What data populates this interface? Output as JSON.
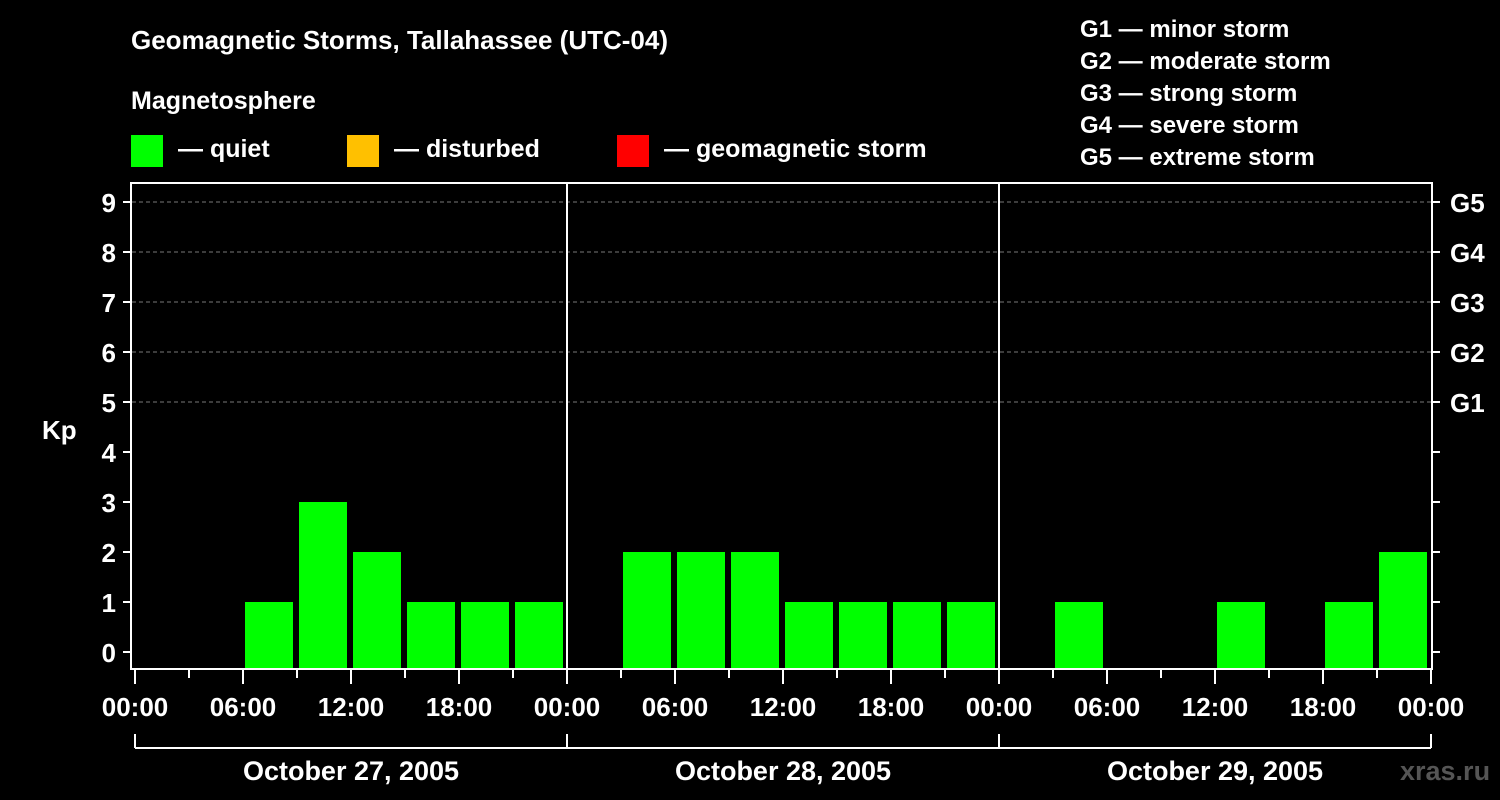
{
  "chart_data": {
    "type": "bar",
    "title": "Geomagnetic Storms, Tallahassee (UTC-04)",
    "legend_title": "Magnetosphere",
    "legend": [
      {
        "label": "— quiet",
        "color": "#00ff00"
      },
      {
        "label": "— disturbed",
        "color": "#ffc000"
      },
      {
        "label": "— geomagnetic storm",
        "color": "#ff0000"
      }
    ],
    "storm_scale": [
      "G1 — minor storm",
      "G2 — moderate storm",
      "G3 — strong storm",
      "G4 — severe storm",
      "G5 — extreme storm"
    ],
    "ylabel": "Kp",
    "ylim": [
      0,
      9
    ],
    "y_ticks": [
      "0",
      "1",
      "2",
      "3",
      "4",
      "5",
      "6",
      "7",
      "8",
      "9"
    ],
    "g_levels": [
      {
        "kp": 5,
        "label": "G1"
      },
      {
        "kp": 6,
        "label": "G2"
      },
      {
        "kp": 7,
        "label": "G3"
      },
      {
        "kp": 8,
        "label": "G4"
      },
      {
        "kp": 9,
        "label": "G5"
      }
    ],
    "x_ticks": [
      "00:00",
      "06:00",
      "12:00",
      "18:00",
      "00:00",
      "06:00",
      "12:00",
      "18:00",
      "00:00",
      "06:00",
      "12:00",
      "18:00",
      "00:00"
    ],
    "days": [
      "October 27, 2005",
      "October 28, 2005",
      "October 29, 2005"
    ],
    "interval_hours": 3,
    "values": [
      0,
      0,
      1,
      3,
      2,
      1,
      1,
      1,
      0,
      2,
      2,
      2,
      1,
      1,
      1,
      1,
      0,
      1,
      0,
      0,
      1,
      0,
      1,
      2,
      2
    ],
    "bar_color": "#00ff00",
    "grid": true,
    "watermark": "xras.ru"
  }
}
